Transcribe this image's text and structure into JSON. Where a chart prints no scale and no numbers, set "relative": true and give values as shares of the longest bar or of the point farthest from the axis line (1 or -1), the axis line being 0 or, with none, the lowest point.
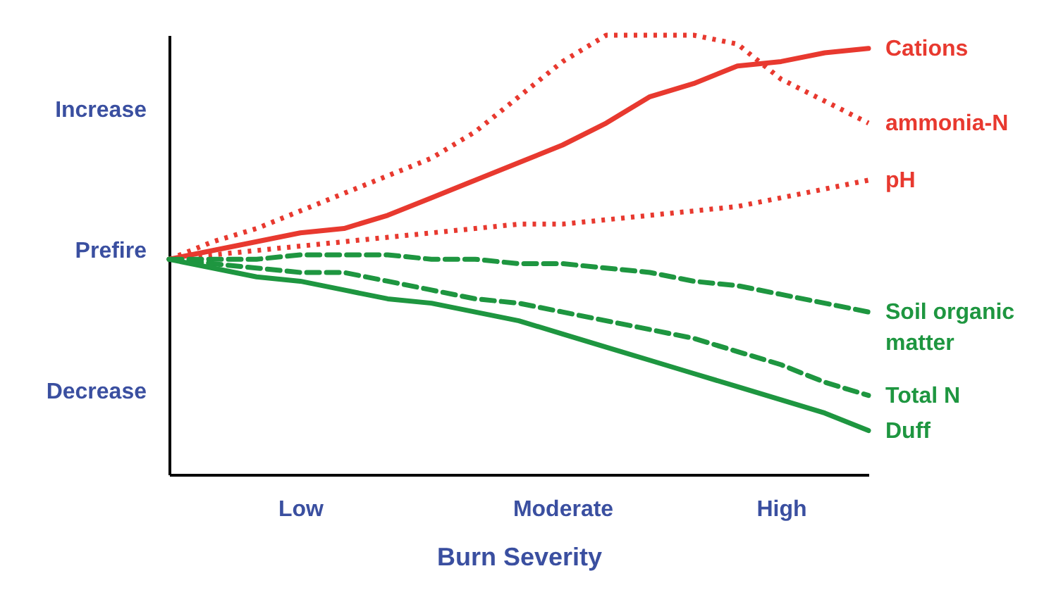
{
  "chart_data": {
    "type": "line",
    "xlabel": "Burn Severity",
    "relative": true,
    "legend": false,
    "grid": false,
    "marker": "none",
    "categories": [
      null,
      null,
      null,
      "Low",
      null,
      null,
      null,
      null,
      null,
      "Moderate",
      null,
      null,
      null,
      null,
      "High",
      null,
      null
    ],
    "annotations": [
      "Increase",
      "Prefire",
      "Decrease"
    ],
    "series": [
      {
        "name": "Cations",
        "color": "#e8392f",
        "line_style": "solid",
        "values": [
          0.49,
          0.51,
          0.53,
          0.55,
          0.56,
          0.59,
          0.63,
          0.67,
          0.71,
          0.75,
          0.8,
          0.86,
          0.89,
          0.93,
          0.94,
          0.96,
          0.97
        ]
      },
      {
        "name": "ammonia-N",
        "color": "#e8392f",
        "line_style": "dotted",
        "values": [
          0.49,
          0.53,
          0.56,
          0.6,
          0.64,
          0.68,
          0.72,
          0.78,
          0.86,
          0.94,
          1,
          1,
          1,
          0.98,
          0.9,
          0.85,
          0.8
        ]
      },
      {
        "name": "pH",
        "color": "#e8392f",
        "line_style": "dotted",
        "values": [
          0.49,
          0.5,
          0.51,
          0.52,
          0.53,
          0.54,
          0.55,
          0.56,
          0.57,
          0.57,
          0.58,
          0.59,
          0.6,
          0.61,
          0.63,
          0.65,
          0.67
        ]
      },
      {
        "name": "Soil organic matter",
        "color": "#1e9640",
        "line_style": "dashed",
        "values": [
          0.49,
          0.49,
          0.49,
          0.5,
          0.5,
          0.5,
          0.49,
          0.49,
          0.48,
          0.48,
          0.47,
          0.46,
          0.44,
          0.43,
          0.41,
          0.39,
          0.37
        ]
      },
      {
        "name": "Total N",
        "color": "#1e9640",
        "line_style": "dashed",
        "values": [
          0.49,
          0.48,
          0.47,
          0.46,
          0.46,
          0.44,
          0.42,
          0.4,
          0.39,
          0.37,
          0.35,
          0.33,
          0.31,
          0.28,
          0.25,
          0.21,
          0.18
        ]
      },
      {
        "name": "Duff",
        "color": "#1e9640",
        "line_style": "solid",
        "values": [
          0.49,
          0.47,
          0.45,
          0.44,
          0.42,
          0.4,
          0.39,
          0.37,
          0.35,
          0.32,
          0.29,
          0.26,
          0.23,
          0.2,
          0.17,
          0.14,
          0.1
        ]
      }
    ]
  }
}
